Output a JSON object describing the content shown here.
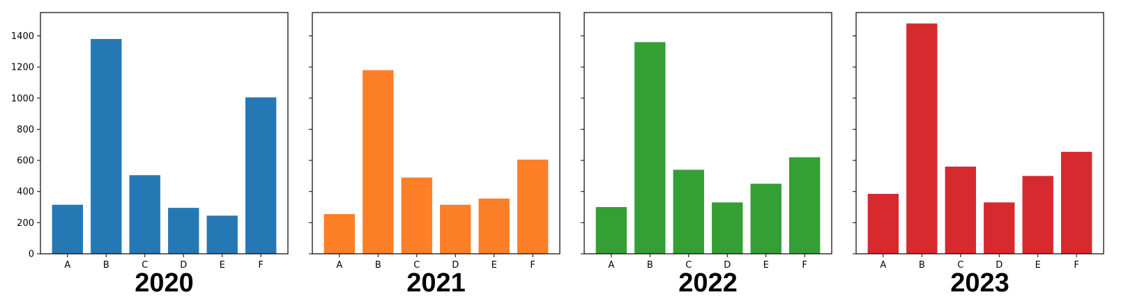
{
  "chart_data": [
    {
      "type": "bar",
      "title": "2020",
      "categories": [
        "A",
        "B",
        "C",
        "D",
        "E",
        "F"
      ],
      "values": [
        315,
        1380,
        505,
        295,
        245,
        1005
      ],
      "color": "#2678b4",
      "ylim": [
        0,
        1550
      ],
      "yticks": [
        0,
        200,
        400,
        600,
        800,
        1000,
        1200,
        1400
      ],
      "show_ytick_labels": true
    },
    {
      "type": "bar",
      "title": "2021",
      "categories": [
        "A",
        "B",
        "C",
        "D",
        "E",
        "F"
      ],
      "values": [
        255,
        1180,
        490,
        315,
        355,
        605
      ],
      "color": "#fd7f28",
      "ylim": [
        0,
        1550
      ],
      "yticks": [
        0,
        200,
        400,
        600,
        800,
        1000,
        1200,
        1400
      ],
      "show_ytick_labels": false
    },
    {
      "type": "bar",
      "title": "2022",
      "categories": [
        "A",
        "B",
        "C",
        "D",
        "E",
        "F"
      ],
      "values": [
        300,
        1360,
        540,
        330,
        450,
        620
      ],
      "color": "#339f34",
      "ylim": [
        0,
        1550
      ],
      "yticks": [
        0,
        200,
        400,
        600,
        800,
        1000,
        1200,
        1400
      ],
      "show_ytick_labels": false
    },
    {
      "type": "bar",
      "title": "2023",
      "categories": [
        "A",
        "B",
        "C",
        "D",
        "E",
        "F"
      ],
      "values": [
        385,
        1480,
        560,
        330,
        500,
        655
      ],
      "color": "#d62a2f",
      "ylim": [
        0,
        1550
      ],
      "yticks": [
        0,
        200,
        400,
        600,
        800,
        1000,
        1200,
        1400
      ],
      "show_ytick_labels": false
    }
  ]
}
